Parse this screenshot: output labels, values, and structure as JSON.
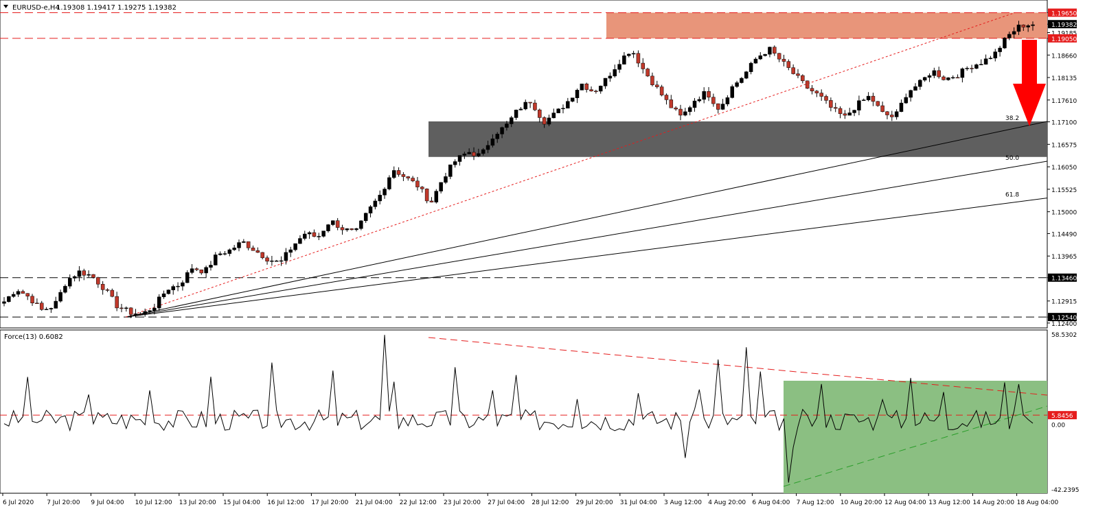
{
  "header": {
    "symbol_label": "EURUSD-e,H4",
    "ohlc": "1.19308 1.19417 1.19275 1.19382",
    "indicator_label": "Force(13) 0.6082"
  },
  "colors": {
    "bull": "#000000",
    "bear": "#c0392b",
    "resistance_zone": "#e8957a",
    "support_zone": "#5f5f5f",
    "indicator_zone": "#8bbf82",
    "red_line": "#e51c1c",
    "green_line": "#2a9d2a",
    "arrow": "#ff0000"
  },
  "chart_data": [
    {
      "type": "candlestick",
      "title": "EURUSD-e,H4",
      "y_tick_labels": [
        "1.19650",
        "1.19382",
        "1.19185",
        "1.19050",
        "1.18660",
        "1.18135",
        "1.17610",
        "1.17100",
        "1.16575",
        "1.16050",
        "1.15525",
        "1.15000",
        "1.14490",
        "1.13965",
        "1.13460",
        "1.12915",
        "1.12540",
        "1.12400"
      ],
      "ylim": [
        1.1235,
        1.1985
      ],
      "x_tick_labels": [
        "6 Jul 2020",
        "7 Jul 20:00",
        "9 Jul 04:00",
        "10 Jul 12:00",
        "13 Jul 20:00",
        "15 Jul 04:00",
        "16 Jul 12:00",
        "17 Jul 20:00",
        "21 Jul 04:00",
        "22 Jul 12:00",
        "23 Jul 20:00",
        "27 Jul 04:00",
        "28 Jul 12:00",
        "29 Jul 20:00",
        "31 Jul 04:00",
        "3 Aug 12:00",
        "4 Aug 20:00",
        "6 Aug 04:00",
        "7 Aug 12:00",
        "10 Aug 20:00",
        "12 Aug 04:00",
        "13 Aug 12:00",
        "14 Aug 20:00",
        "18 Aug 04:00"
      ],
      "close_path": [
        1.129,
        1.132,
        1.13,
        1.127,
        1.128,
        1.134,
        1.136,
        1.135,
        1.132,
        1.128,
        1.1265,
        1.126,
        1.128,
        1.132,
        1.133,
        1.137,
        1.136,
        1.14,
        1.141,
        1.143,
        1.141,
        1.139,
        1.138,
        1.142,
        1.145,
        1.144,
        1.148,
        1.146,
        1.145,
        1.15,
        1.154,
        1.16,
        1.158,
        1.156,
        1.152,
        1.158,
        1.162,
        1.164,
        1.163,
        1.168,
        1.17,
        1.174,
        1.176,
        1.171,
        1.173,
        1.176,
        1.18,
        1.178,
        1.181,
        1.185,
        1.188,
        1.183,
        1.179,
        1.175,
        1.172,
        1.176,
        1.178,
        1.174,
        1.179,
        1.182,
        1.186,
        1.188,
        1.185,
        1.182,
        1.179,
        1.177,
        1.174,
        1.172,
        1.175,
        1.177,
        1.173,
        1.172,
        1.178,
        1.18,
        1.183,
        1.181,
        1.182,
        1.184,
        1.185,
        1.187,
        1.191,
        1.1935,
        1.1938
      ],
      "levels": [
        {
          "label": "1.19650",
          "value": 1.1965,
          "color": "#e51c1c",
          "style": "dashed",
          "tag_bg": "#e51c1c"
        },
        {
          "label": "1.19050",
          "value": 1.1905,
          "color": "#e51c1c",
          "style": "dashed",
          "tag_bg": "#e51c1c"
        },
        {
          "label": "1.13460",
          "value": 1.1346,
          "color": "#000000",
          "style": "dashed",
          "tag_bg": "#000000"
        },
        {
          "label": "1.12540",
          "value": 1.1254,
          "color": "#000000",
          "style": "dashed",
          "tag_bg": "#000000"
        }
      ],
      "current_price_tag": "1.19382",
      "fib_labels": [
        "38.2",
        "50.0",
        "61.8"
      ],
      "zones": [
        {
          "name": "resistance",
          "from": 1.1905,
          "to": 1.1965
        },
        {
          "name": "support",
          "from": 1.1628,
          "to": 1.1711
        }
      ]
    },
    {
      "type": "line",
      "title": "Force(13) 0.6082",
      "y_tick_labels": [
        "58.5302",
        "5.8456",
        "0.00",
        "-42.2395"
      ],
      "ylim": [
        -42.2395,
        58.5302
      ],
      "level_tag": "5.8456",
      "level_value": 5.8456
    }
  ]
}
